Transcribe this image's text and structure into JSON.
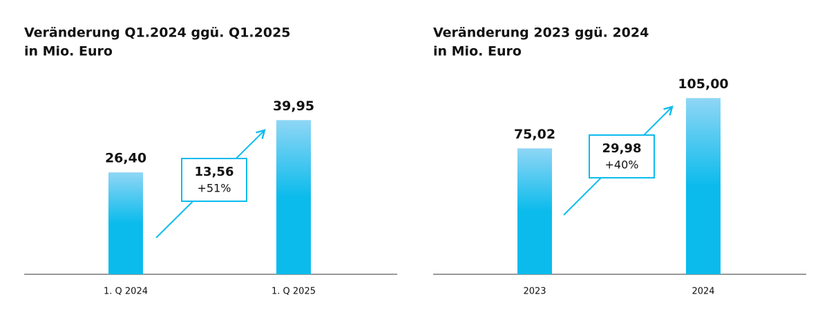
{
  "chart_data": [
    {
      "type": "bar",
      "title": "Veränderung Q1.2024 ggü. Q1.2025",
      "subtitle": "in Mio. Euro",
      "categories": [
        "1. Q 2024",
        "1. Q 2025"
      ],
      "values": [
        26.4,
        39.95
      ],
      "value_labels": [
        "26,40",
        "39,95"
      ],
      "color": "#0bbbec",
      "ylim": [
        0,
        50
      ],
      "annotation": {
        "value": "13,56",
        "change": "+51%"
      }
    },
    {
      "type": "bar",
      "title": "Veränderung 2023 ggü. 2024",
      "subtitle": "in Mio. Euro",
      "categories": [
        "2023",
        "2024"
      ],
      "values": [
        75.02,
        105.0
      ],
      "value_labels": [
        "75,02",
        "105,00"
      ],
      "color": "#0bbbec",
      "ylim": [
        0,
        115
      ],
      "annotation": {
        "value": "29,98",
        "change": "+40%"
      }
    }
  ]
}
